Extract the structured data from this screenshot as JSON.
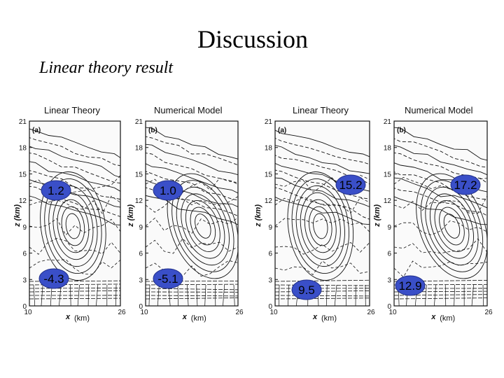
{
  "slide": {
    "title": "Discussion",
    "subtitle": "Linear theory result"
  },
  "panels": [
    {
      "heading": "Linear Theory",
      "tag": "(a)",
      "badges": [
        "1.2",
        "-4.3"
      ]
    },
    {
      "heading": "Numerical Model",
      "tag": "(b)",
      "badges": [
        "1.0",
        "-5.1"
      ]
    },
    {
      "heading": "Linear Theory",
      "tag": "(a)",
      "badges": [
        "15.2",
        "9.5"
      ]
    },
    {
      "heading": "Numerical Model",
      "tag": "(b)",
      "badges": [
        "17.2",
        "12.9"
      ]
    }
  ],
  "axes": {
    "y_label": "z (km)",
    "x_label": "x",
    "x_unit": "(km)",
    "y_ticks": [
      "0",
      "3",
      "6",
      "9",
      "12",
      "15",
      "18",
      "21"
    ],
    "x_ticks": [
      "10",
      "26"
    ]
  },
  "colors": {
    "badge_fill": "#3a4fc8",
    "badge_text": "#000000",
    "ink": "#111111"
  }
}
